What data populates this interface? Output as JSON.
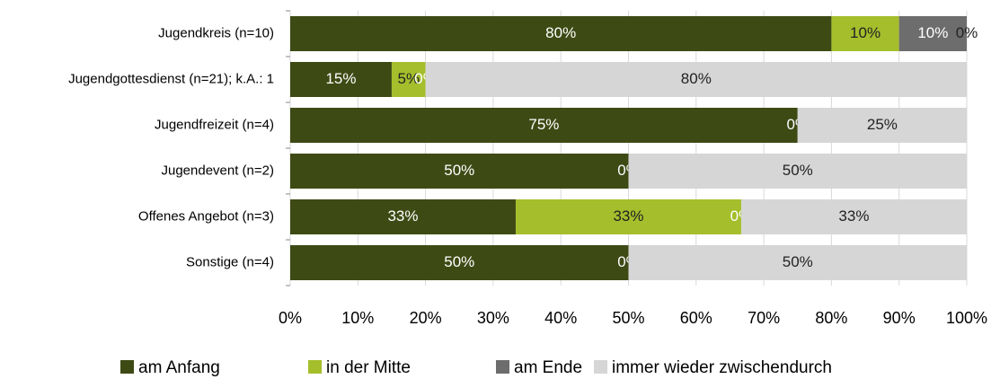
{
  "chart_data": {
    "type": "stacked-barh",
    "categories": [
      "Jugendkreis (n=10)",
      "Jugendgottesdienst (n=21); k.A.: 1",
      "Jugendfreizeit (n=4)",
      "Jugendevent (n=2)",
      "Offenes Angebot (n=3)",
      "Sonstige (n=4)"
    ],
    "series": [
      {
        "name": "am Anfang",
        "color": "#3e4a14",
        "values": [
          80,
          15,
          75,
          50,
          33.33,
          50
        ],
        "value_labels": [
          "80%",
          "15%",
          "75%",
          "50%",
          "33%",
          "50%"
        ]
      },
      {
        "name": "in der Mitte",
        "color": "#a4be2c",
        "values": [
          10,
          5,
          0,
          0,
          33.33,
          0
        ],
        "value_labels": [
          "10%",
          "5%",
          "0%",
          "0%",
          "33%",
          "0%"
        ]
      },
      {
        "name": "am Ende",
        "color": "#6d6d6d",
        "values": [
          10,
          0,
          0,
          0,
          0,
          0
        ],
        "value_labels": [
          "10%",
          "0%",
          "0%",
          "0%",
          "0%",
          "0%"
        ]
      },
      {
        "name": "immer wieder zwischendurch",
        "color": "#d6d6d6",
        "values": [
          0,
          80,
          25,
          50,
          33.33,
          50
        ],
        "value_labels": [
          "0%",
          "80%",
          "25%",
          "50%",
          "33%",
          "50%"
        ]
      }
    ],
    "xlim": [
      0,
      100
    ],
    "xticks": [
      {
        "value": 0,
        "label": "0%"
      },
      {
        "value": 10,
        "label": "10%"
      },
      {
        "value": 20,
        "label": "20%"
      },
      {
        "value": 30,
        "label": "30%"
      },
      {
        "value": 40,
        "label": "40%"
      },
      {
        "value": 50,
        "label": "50%"
      },
      {
        "value": 60,
        "label": "60%"
      },
      {
        "value": 70,
        "label": "70%"
      },
      {
        "value": 80,
        "label": "80%"
      },
      {
        "value": 90,
        "label": "90%"
      },
      {
        "value": 100,
        "label": "100%"
      }
    ],
    "grid": true,
    "legend": "bottom"
  }
}
